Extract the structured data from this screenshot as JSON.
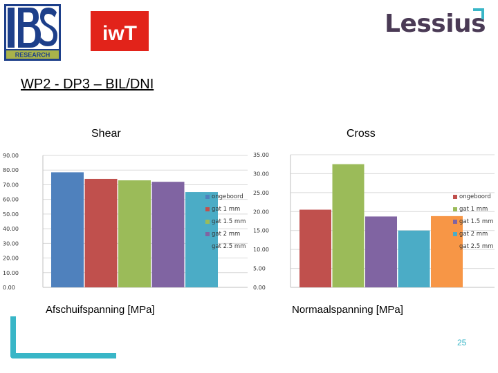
{
  "header": {
    "logo_left_text": "RESEARCH",
    "logo_iwt_text": "iwT",
    "brand": "Lessius"
  },
  "title": "WP2 - DP3 – BIL/DNI",
  "page_number": "25",
  "colors": {
    "accent": "#39b6c7",
    "series": [
      "#4f81bd",
      "#c0504d",
      "#9bbb59",
      "#8064a2",
      "#4bacc6",
      "#f79646"
    ]
  },
  "chart_data": [
    {
      "type": "bar",
      "title": "Shear",
      "xlabel": "Afschuifspanning [MPa]",
      "ylabel": "",
      "ylim": [
        0,
        90
      ],
      "yticks": [
        "0.00",
        "10.00",
        "20.00",
        "30.00",
        "40.00",
        "50.00",
        "60.00",
        "70.00",
        "80.00",
        "90.00"
      ],
      "legend_position": "right",
      "series": [
        {
          "name": "ongeboord",
          "value": 78.5,
          "color": "#4f81bd"
        },
        {
          "name": "gat 1 mm",
          "value": 74.0,
          "color": "#c0504d"
        },
        {
          "name": "gat 1.5 mm",
          "value": 73.0,
          "color": "#9bbb59"
        },
        {
          "name": "gat 2 mm",
          "value": 72.0,
          "color": "#8064a2"
        },
        {
          "name": "gat 2.5 mm",
          "value": 65.0,
          "color": "#4bacc6"
        }
      ]
    },
    {
      "type": "bar",
      "title": "Cross",
      "xlabel": "Normaalspanning [MPa]",
      "ylabel": "",
      "ylim": [
        0,
        35
      ],
      "yticks": [
        "0.00",
        "5.00",
        "10.00",
        "15.00",
        "20.00",
        "25.00",
        "30.00",
        "35.00"
      ],
      "legend_position": "right",
      "series": [
        {
          "name": "ongeboord",
          "value": 20.5,
          "color": "#c0504d"
        },
        {
          "name": "gat 1 mm",
          "value": 32.5,
          "color": "#9bbb59"
        },
        {
          "name": "gat 1.5 mm",
          "value": 18.7,
          "color": "#8064a2"
        },
        {
          "name": "gat 2 mm",
          "value": 15.0,
          "color": "#4bacc6"
        },
        {
          "name": "gat 2.5 mm",
          "value": 18.8,
          "color": "#f79646"
        }
      ]
    }
  ]
}
